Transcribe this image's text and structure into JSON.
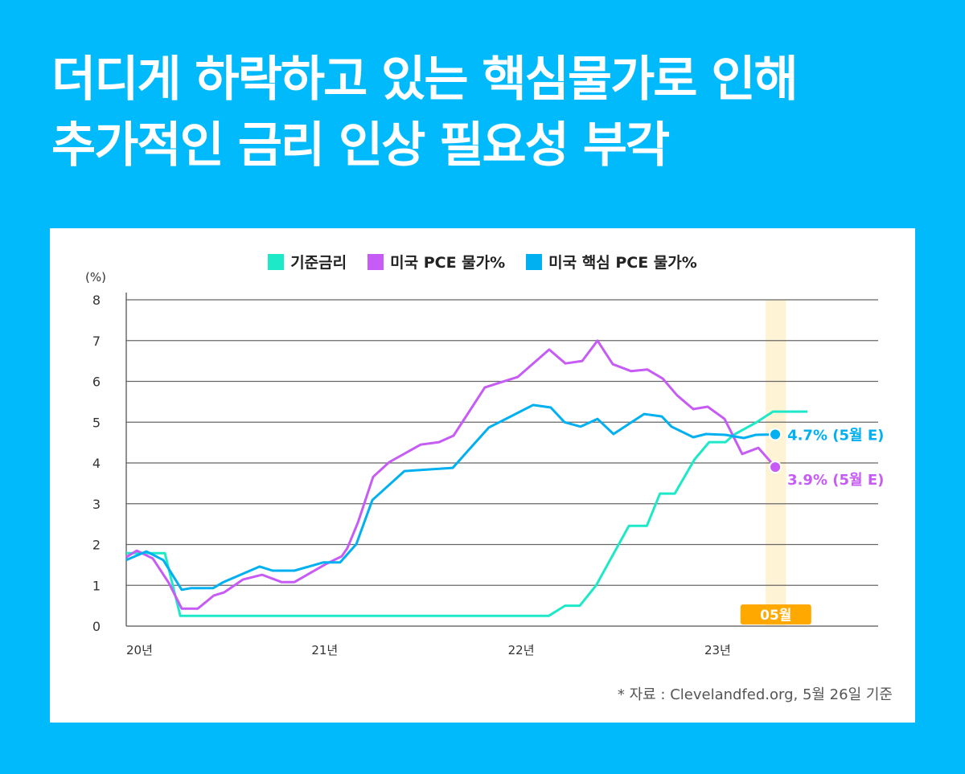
{
  "title_lines": [
    "더디게 하락하고 있는 핵심물가로 인해",
    "추가적인 금리 인상 필요성 부각"
  ],
  "source": "* 자료 : Clevelandfed.org, 5월 26일 기준",
  "chart_data": {
    "type": "line",
    "ylabel": "(%)",
    "ylim": [
      0,
      8
    ],
    "yticks": [
      0,
      1,
      2,
      3,
      4,
      5,
      6,
      7,
      8
    ],
    "x_unit": "months since Jan 2020",
    "xlim": [
      0,
      46
    ],
    "xticks": [
      {
        "m": 0,
        "label": "20년"
      },
      {
        "m": 12,
        "label": "21년"
      },
      {
        "m": 24,
        "label": "22년"
      },
      {
        "m": 36,
        "label": "23년"
      }
    ],
    "grid": true,
    "legend_position": "top-center",
    "highlight": {
      "from": 39.05,
      "to": 40.3,
      "label": "05월",
      "color": "#ffa800",
      "band_color": "#fff3d6"
    },
    "series": [
      {
        "name": "기준금리",
        "color": "#1de9c8",
        "points": [
          [
            0,
            1.79
          ],
          [
            2.36,
            1.79
          ],
          [
            3.3,
            0.25
          ],
          [
            25.8,
            0.25
          ],
          [
            26.8,
            0.5
          ],
          [
            27.7,
            0.5
          ],
          [
            28.7,
            1.0
          ],
          [
            30.7,
            2.46
          ],
          [
            31.8,
            2.46
          ],
          [
            32.6,
            3.25
          ],
          [
            33.5,
            3.25
          ],
          [
            34.7,
            4.08
          ],
          [
            35.6,
            4.51
          ],
          [
            36.6,
            4.51
          ],
          [
            37.1,
            4.69
          ],
          [
            38.5,
            5.0
          ],
          [
            39.5,
            5.26
          ],
          [
            41.6,
            5.26
          ]
        ]
      },
      {
        "name": "미국 PCE 물가%",
        "color": "#c65cf5",
        "end_label": "3.9% (5월 E)",
        "points": [
          [
            0,
            1.69
          ],
          [
            0.64,
            1.85
          ],
          [
            1.62,
            1.66
          ],
          [
            2.6,
            1.06
          ],
          [
            3.39,
            0.43
          ],
          [
            4.37,
            0.43
          ],
          [
            5.35,
            0.75
          ],
          [
            5.99,
            0.83
          ],
          [
            7.12,
            1.14
          ],
          [
            8.3,
            1.26
          ],
          [
            9.48,
            1.08
          ],
          [
            10.27,
            1.08
          ],
          [
            12.18,
            1.52
          ],
          [
            13.16,
            1.71
          ],
          [
            13.5,
            1.91
          ],
          [
            14.15,
            2.54
          ],
          [
            15.08,
            3.66
          ],
          [
            16.06,
            4.02
          ],
          [
            17.98,
            4.45
          ],
          [
            19.1,
            4.51
          ],
          [
            19.99,
            4.67
          ],
          [
            21.9,
            5.85
          ],
          [
            23.92,
            6.11
          ],
          [
            25.83,
            6.78
          ],
          [
            26.82,
            6.44
          ],
          [
            27.85,
            6.5
          ],
          [
            28.78,
            7.0
          ],
          [
            29.72,
            6.42
          ],
          [
            30.84,
            6.25
          ],
          [
            31.83,
            6.29
          ],
          [
            32.76,
            6.07
          ],
          [
            33.64,
            5.66
          ],
          [
            34.63,
            5.32
          ],
          [
            35.51,
            5.38
          ],
          [
            36.54,
            5.08
          ],
          [
            37.62,
            4.22
          ],
          [
            38.61,
            4.37
          ],
          [
            39.64,
            3.9
          ]
        ]
      },
      {
        "name": "미국 핵심 PCE 물가%",
        "color": "#00b0f0",
        "end_label": "4.7% (5월 E)",
        "points": [
          [
            0,
            1.62
          ],
          [
            1.23,
            1.83
          ],
          [
            2.26,
            1.62
          ],
          [
            3.39,
            0.89
          ],
          [
            3.93,
            0.93
          ],
          [
            5.3,
            0.93
          ],
          [
            5.94,
            1.08
          ],
          [
            8.15,
            1.46
          ],
          [
            8.94,
            1.36
          ],
          [
            10.27,
            1.36
          ],
          [
            12.03,
            1.56
          ],
          [
            13.06,
            1.56
          ],
          [
            14.05,
            2.01
          ],
          [
            15.03,
            3.09
          ],
          [
            16.99,
            3.8
          ],
          [
            19.94,
            3.88
          ],
          [
            20.92,
            4.32
          ],
          [
            22.15,
            4.87
          ],
          [
            22.99,
            5.04
          ],
          [
            24.85,
            5.42
          ],
          [
            25.93,
            5.36
          ],
          [
            26.77,
            5.0
          ],
          [
            27.75,
            4.89
          ],
          [
            28.78,
            5.08
          ],
          [
            29.76,
            4.71
          ],
          [
            30.75,
            4.97
          ],
          [
            31.63,
            5.2
          ],
          [
            32.71,
            5.14
          ],
          [
            33.3,
            4.89
          ],
          [
            34.63,
            4.63
          ],
          [
            35.41,
            4.71
          ],
          [
            36.59,
            4.69
          ],
          [
            37.72,
            4.61
          ],
          [
            38.46,
            4.69
          ],
          [
            39.64,
            4.7
          ]
        ]
      }
    ]
  }
}
